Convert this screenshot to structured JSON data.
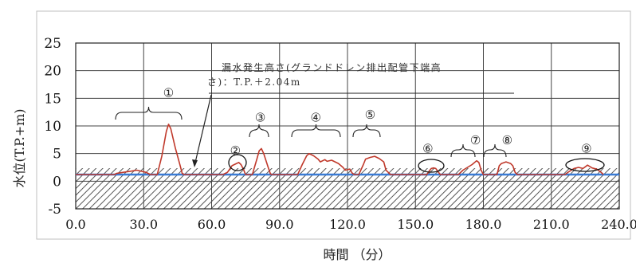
{
  "chart_data": {
    "type": "line",
    "title": "",
    "xlabel": "時間 （分）",
    "ylabel": "水位(T.P.+m)",
    "xlim": [
      0,
      240
    ],
    "ylim": [
      -5,
      25
    ],
    "x_ticks": [
      0,
      30,
      60,
      90,
      120,
      150,
      180,
      210,
      240
    ],
    "x_tick_labels": [
      "0.0",
      "30.0",
      "60.0",
      "90.0",
      "120.0",
      "150.0",
      "180.0",
      "210.0",
      "240.0"
    ],
    "y_ticks": [
      -5,
      0,
      5,
      10,
      15,
      20,
      25
    ],
    "y_tick_labels": [
      "-5",
      "0",
      "5",
      "10",
      "15",
      "20",
      "25"
    ],
    "grid": "major",
    "threshold": {
      "value": 1.2,
      "x_start": 0,
      "x_end": 240
    },
    "annotation": {
      "line1": "漏水発生高さ(グランドドレン排出配管下端高",
      "line2": "さ)：T.P.＋2.04m"
    },
    "labels": [
      {
        "text": "①",
        "x": 41,
        "y": 15.3
      },
      {
        "text": "②",
        "x": 70.5,
        "y": 4.8
      },
      {
        "text": "③",
        "x": 81.5,
        "y": 10.8
      },
      {
        "text": "④",
        "x": 106,
        "y": 10.8
      },
      {
        "text": "⑤",
        "x": 130,
        "y": 11.3
      },
      {
        "text": "⑥",
        "x": 155.5,
        "y": 5.2
      },
      {
        "text": "⑦",
        "x": 176.5,
        "y": 6.7
      },
      {
        "text": "⑧",
        "x": 190.5,
        "y": 6.7
      },
      {
        "text": "⑨",
        "x": 225.5,
        "y": 5.2
      }
    ],
    "series": [
      {
        "color": "#c0392b",
        "points": [
          [
            0,
            1.2
          ],
          [
            17,
            1.2
          ],
          [
            18,
            1.4
          ],
          [
            21,
            1.6
          ],
          [
            24,
            1.8
          ],
          [
            27,
            2.0
          ],
          [
            29,
            1.8
          ],
          [
            31,
            1.6
          ],
          [
            33,
            1.2
          ],
          [
            36,
            1.2
          ],
          [
            38,
            4.5
          ],
          [
            40,
            9.0
          ],
          [
            41,
            10.3
          ],
          [
            42,
            9.5
          ],
          [
            44,
            6.0
          ],
          [
            46,
            3.0
          ],
          [
            47,
            1.4
          ],
          [
            48,
            1.2
          ],
          [
            65,
            1.2
          ],
          [
            67,
            1.6
          ],
          [
            69,
            2.8
          ],
          [
            71,
            3.2
          ],
          [
            72,
            3.4
          ],
          [
            73,
            3.0
          ],
          [
            74,
            2.2
          ],
          [
            75,
            1.2
          ],
          [
            78,
            1.2
          ],
          [
            80,
            4.0
          ],
          [
            81,
            5.5
          ],
          [
            82,
            5.9
          ],
          [
            83,
            5.0
          ],
          [
            85,
            2.5
          ],
          [
            86,
            1.3
          ],
          [
            87,
            1.2
          ],
          [
            98,
            1.2
          ],
          [
            100,
            3.0
          ],
          [
            102,
            4.6
          ],
          [
            103,
            5.0
          ],
          [
            105,
            4.6
          ],
          [
            107,
            4.0
          ],
          [
            108,
            3.5
          ],
          [
            110,
            3.9
          ],
          [
            111,
            3.6
          ],
          [
            113,
            3.8
          ],
          [
            116,
            3.2
          ],
          [
            118,
            2.5
          ],
          [
            119,
            2.0
          ],
          [
            121,
            2.2
          ],
          [
            122,
            1.5
          ],
          [
            123,
            1.2
          ],
          [
            125,
            1.2
          ],
          [
            127,
            3.0
          ],
          [
            128,
            4.0
          ],
          [
            130,
            4.3
          ],
          [
            132,
            4.5
          ],
          [
            134,
            4.1
          ],
          [
            136,
            3.5
          ],
          [
            137,
            2.0
          ],
          [
            138,
            1.6
          ],
          [
            139,
            1.2
          ],
          [
            155,
            1.2
          ],
          [
            156,
            1.8
          ],
          [
            157,
            2.3
          ],
          [
            158,
            2.4
          ],
          [
            159,
            2.3
          ],
          [
            160,
            1.7
          ],
          [
            161,
            1.2
          ],
          [
            169,
            1.2
          ],
          [
            171,
            2.0
          ],
          [
            173,
            2.5
          ],
          [
            175,
            3.0
          ],
          [
            177,
            3.7
          ],
          [
            178,
            3.4
          ],
          [
            179,
            2.0
          ],
          [
            180,
            1.2
          ],
          [
            186,
            1.2
          ],
          [
            187,
            2.8
          ],
          [
            188,
            3.2
          ],
          [
            190,
            3.5
          ],
          [
            192,
            3.2
          ],
          [
            193,
            2.8
          ],
          [
            194,
            1.6
          ],
          [
            195,
            1.2
          ],
          [
            216,
            1.2
          ],
          [
            218,
            1.8
          ],
          [
            220,
            2.3
          ],
          [
            222,
            2.5
          ],
          [
            224,
            2.3
          ],
          [
            226,
            2.9
          ],
          [
            228,
            2.4
          ],
          [
            230,
            2.2
          ],
          [
            232,
            1.6
          ],
          [
            233,
            1.2
          ]
        ]
      }
    ]
  }
}
